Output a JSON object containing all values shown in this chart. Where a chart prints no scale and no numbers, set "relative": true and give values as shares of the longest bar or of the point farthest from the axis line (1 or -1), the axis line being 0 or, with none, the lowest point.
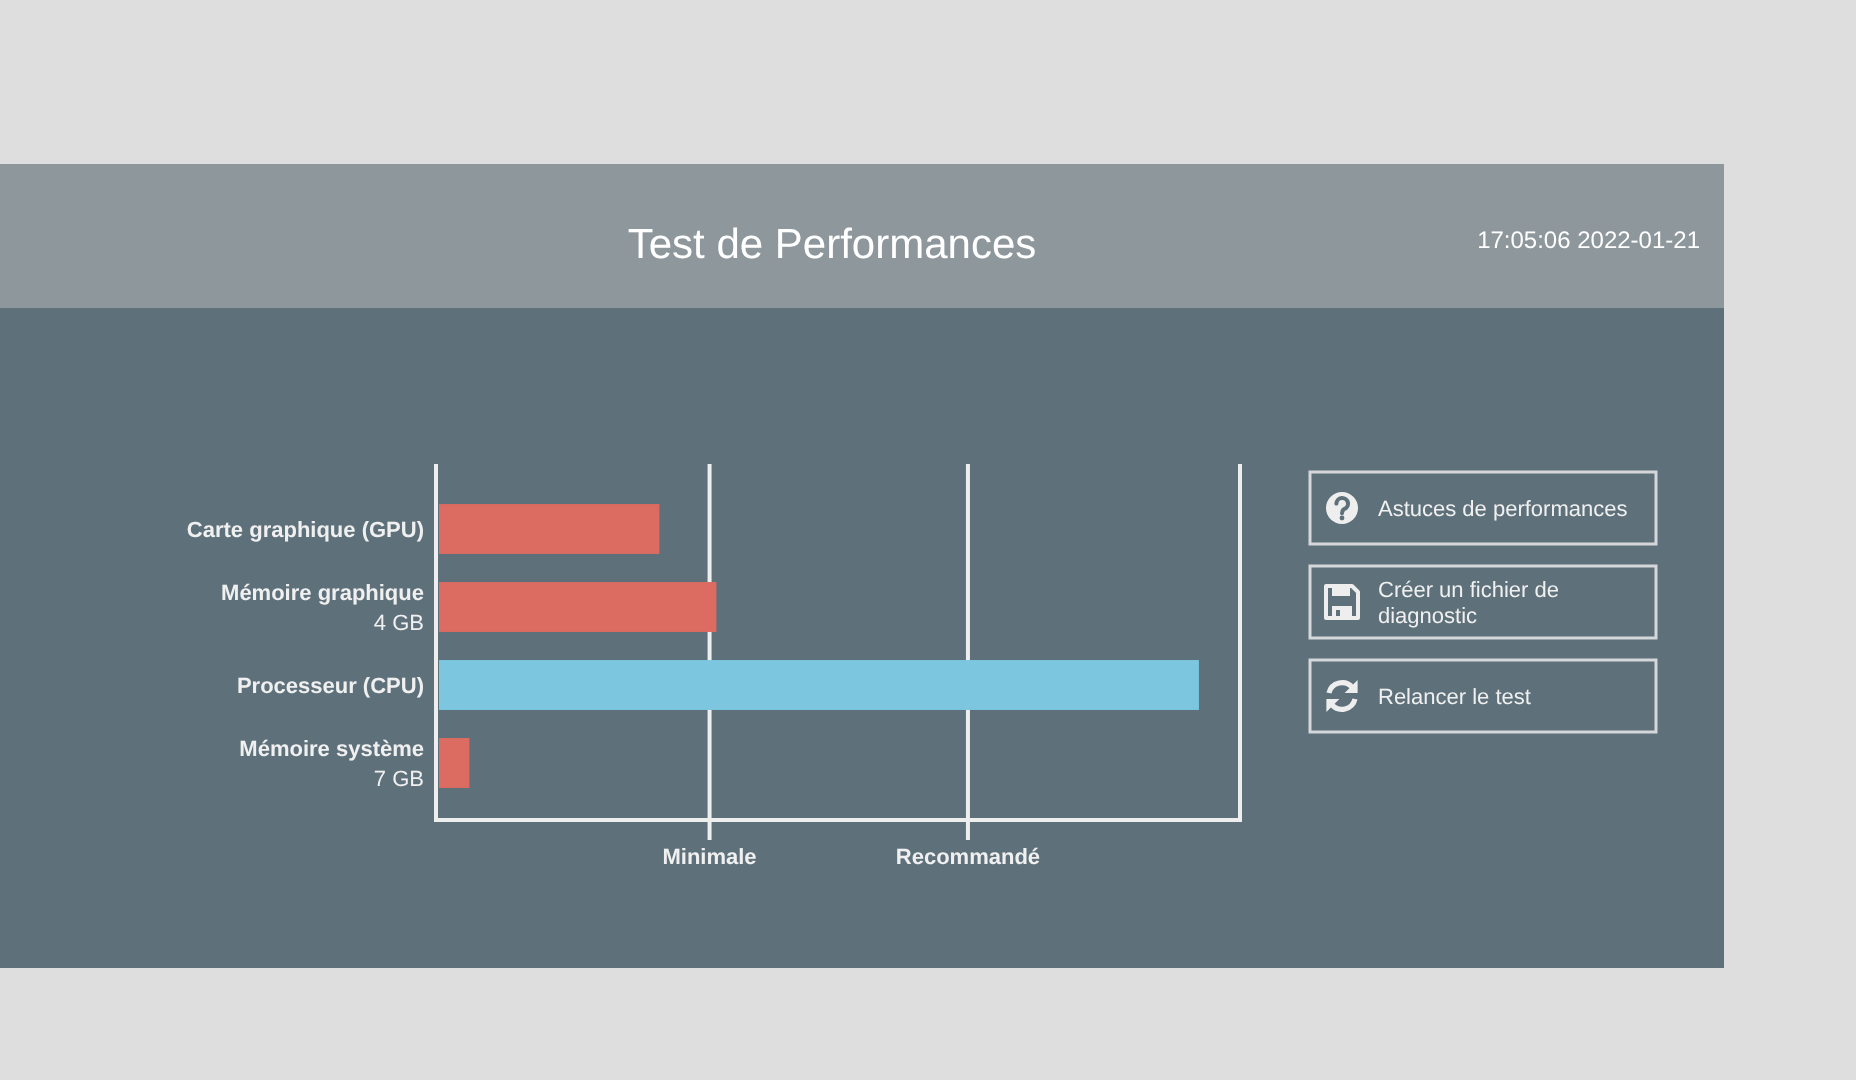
{
  "chart_data": {
    "type": "bar",
    "orientation": "horizontal",
    "relative": true,
    "title": "Test de Performances",
    "categories": [
      "Carte graphique (GPU)",
      "Mémoire graphique\n4 GB",
      "Processeur (CPU)",
      "Mémoire système\n7 GB"
    ],
    "values": [
      0.29,
      0.365,
      1,
      0.04
    ],
    "colors": [
      "#dc6b61",
      "#dc6b61",
      "#7cc6e0",
      "#dc6b61"
    ],
    "ref_lines": [
      {
        "axis": "x",
        "value": 0.36,
        "label": "Minimale",
        "color": "#eeeeee"
      },
      {
        "axis": "x",
        "value": 0.7,
        "label": "Recommandé",
        "color": "#eeeeee"
      }
    ],
    "annotations": [
      "17:05:06 2022-01-21",
      "Astuces de performances",
      "Créer un fichier de diagnostic",
      "Relancer le test"
    ]
  }
}
